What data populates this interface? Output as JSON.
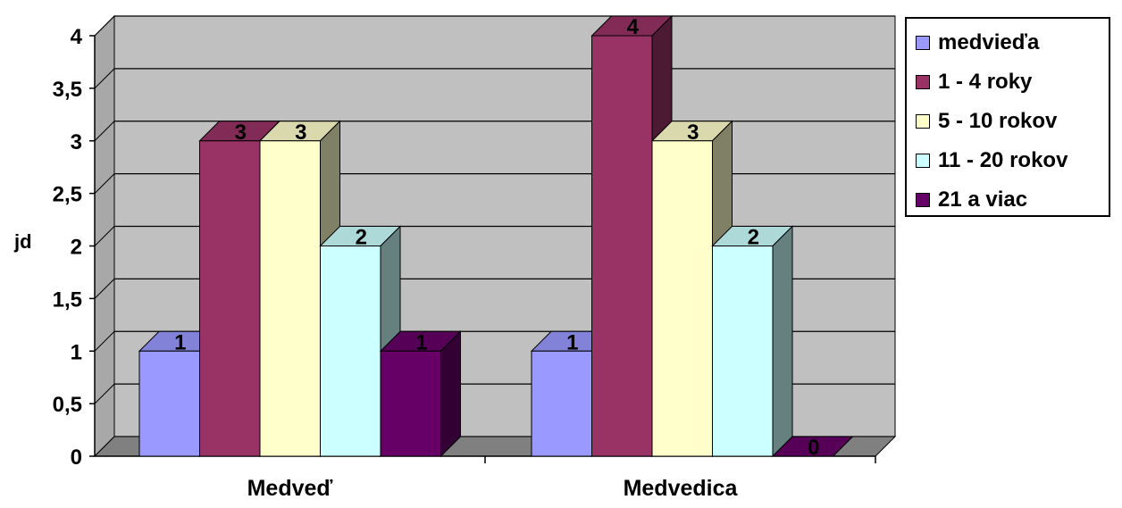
{
  "chart_data": {
    "type": "bar",
    "ylabel": "jd",
    "categories": [
      "Medveď",
      "Medvedica"
    ],
    "y_ticks": [
      "0",
      "0,5",
      "1",
      "1,5",
      "2",
      "2,5",
      "3",
      "3,5",
      "4"
    ],
    "ylim": [
      0,
      4
    ],
    "grid": true,
    "legend_position": "right",
    "series": [
      {
        "name": "medvieďa",
        "values": [
          1,
          1
        ],
        "labels": [
          "1",
          "1"
        ],
        "color": "#9999ff"
      },
      {
        "name": "1 - 4 roky",
        "values": [
          3,
          4
        ],
        "labels": [
          "3",
          "4"
        ],
        "color": "#993366"
      },
      {
        "name": "5 - 10 rokov",
        "values": [
          3,
          3
        ],
        "labels": [
          "3",
          "3"
        ],
        "color": "#ffffcc"
      },
      {
        "name": "11 - 20 rokov",
        "values": [
          2,
          2
        ],
        "labels": [
          "2",
          "2"
        ],
        "color": "#ccffff"
      },
      {
        "name": "21 a viac",
        "values": [
          1,
          0
        ],
        "labels": [
          "1",
          "0"
        ],
        "color": "#660066"
      }
    ],
    "wall_color": "#c0c0c0",
    "floor_color": "#808080"
  }
}
